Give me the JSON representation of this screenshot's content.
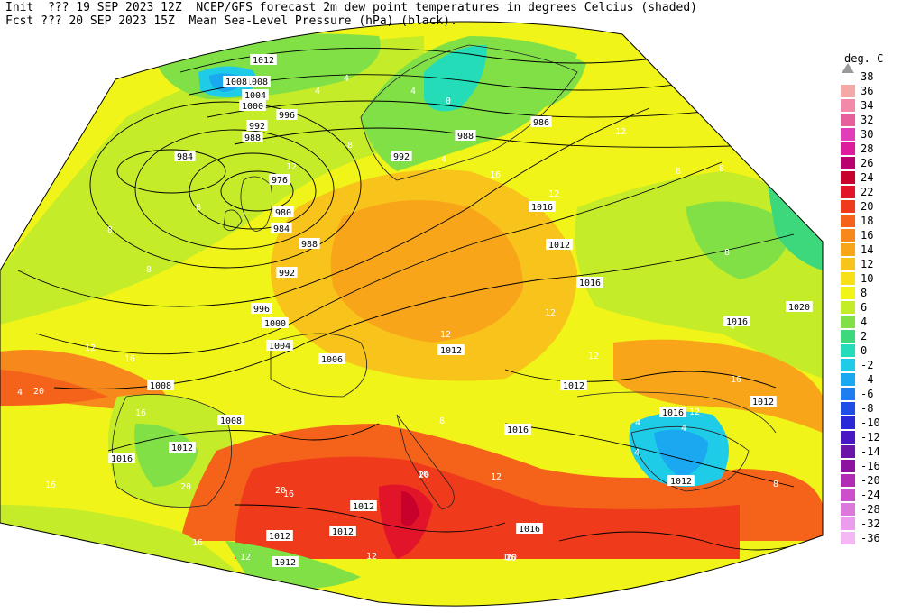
{
  "header": {
    "line1": "Init  ??? 19 SEP 2023 12Z  NCEP/GFS forecast 2m dew point temperatures in degrees Celcius (shaded)",
    "line2": "Fcst ??? 20 SEP 2023 15Z  Mean Sea-Level Pressure (hPa) (black)."
  },
  "colorbar": {
    "title": "deg. C",
    "top_value": "38",
    "levels": [
      {
        "label": "36",
        "color": "#f4a9a9"
      },
      {
        "label": "34",
        "color": "#f08aa8"
      },
      {
        "label": "32",
        "color": "#e6609e"
      },
      {
        "label": "30",
        "color": "#e23db8"
      },
      {
        "label": "28",
        "color": "#dc1c9c"
      },
      {
        "label": "26",
        "color": "#b8006e"
      },
      {
        "label": "24",
        "color": "#c8002c"
      },
      {
        "label": "22",
        "color": "#e2142a"
      },
      {
        "label": "20",
        "color": "#ef3a1c"
      },
      {
        "label": "18",
        "color": "#f5621a"
      },
      {
        "label": "16",
        "color": "#f7891c"
      },
      {
        "label": "14",
        "color": "#f8a51a"
      },
      {
        "label": "12",
        "color": "#f8c31a"
      },
      {
        "label": "10",
        "color": "#f8e018"
      },
      {
        "label": "8",
        "color": "#f0f418"
      },
      {
        "label": "6",
        "color": "#c4ec28"
      },
      {
        "label": "4",
        "color": "#80e046"
      },
      {
        "label": "2",
        "color": "#3ed87c"
      },
      {
        "label": "0",
        "color": "#24dcb8"
      },
      {
        "label": "-2",
        "color": "#1ecce8"
      },
      {
        "label": "-4",
        "color": "#1aa8f0"
      },
      {
        "label": "-6",
        "color": "#1e7ef0"
      },
      {
        "label": "-8",
        "color": "#1e4ee6"
      },
      {
        "label": "-10",
        "color": "#2a28d6"
      },
      {
        "label": "-12",
        "color": "#4a18c2"
      },
      {
        "label": "-14",
        "color": "#6a14a8"
      },
      {
        "label": "-16",
        "color": "#8c12a0"
      },
      {
        "label": "-20",
        "color": "#b02cb4"
      },
      {
        "label": "-24",
        "color": "#cc50cc"
      },
      {
        "label": "-28",
        "color": "#dc78dc"
      },
      {
        "label": "-32",
        "color": "#ec9cec"
      },
      {
        "label": "-36",
        "color": "#f4b8f4"
      }
    ]
  },
  "isobar_labels": [
    "1012",
    "1008",
    "1004",
    "1000",
    "996",
    "992",
    "988",
    "984",
    "976",
    "980",
    "984",
    "988",
    "992",
    "996",
    "1000",
    "1004",
    "1006",
    "1008",
    "1008",
    "1012",
    "1016",
    "1016",
    "1016",
    "1012",
    "1012",
    "1012",
    "1012",
    "1012",
    "1012",
    "1016",
    "1020",
    "1016",
    "1012",
    "1016",
    "1012",
    "1016",
    "1012",
    "992",
    "986",
    "988",
    "1008"
  ],
  "dewpoint_labels": [
    "4",
    "4",
    "4",
    "0",
    "4",
    "8",
    "8",
    "12",
    "8",
    "8",
    "8",
    "8",
    "12",
    "16",
    "12",
    "12",
    "16",
    "20",
    "16",
    "16",
    "16",
    "16",
    "12",
    "12",
    "8",
    "4",
    "4",
    "8",
    "16",
    "12",
    "12",
    "4",
    "16",
    "20",
    "20",
    "20",
    "20",
    "16",
    "16",
    "12",
    "12",
    "8",
    "12",
    "4",
    "4"
  ]
}
